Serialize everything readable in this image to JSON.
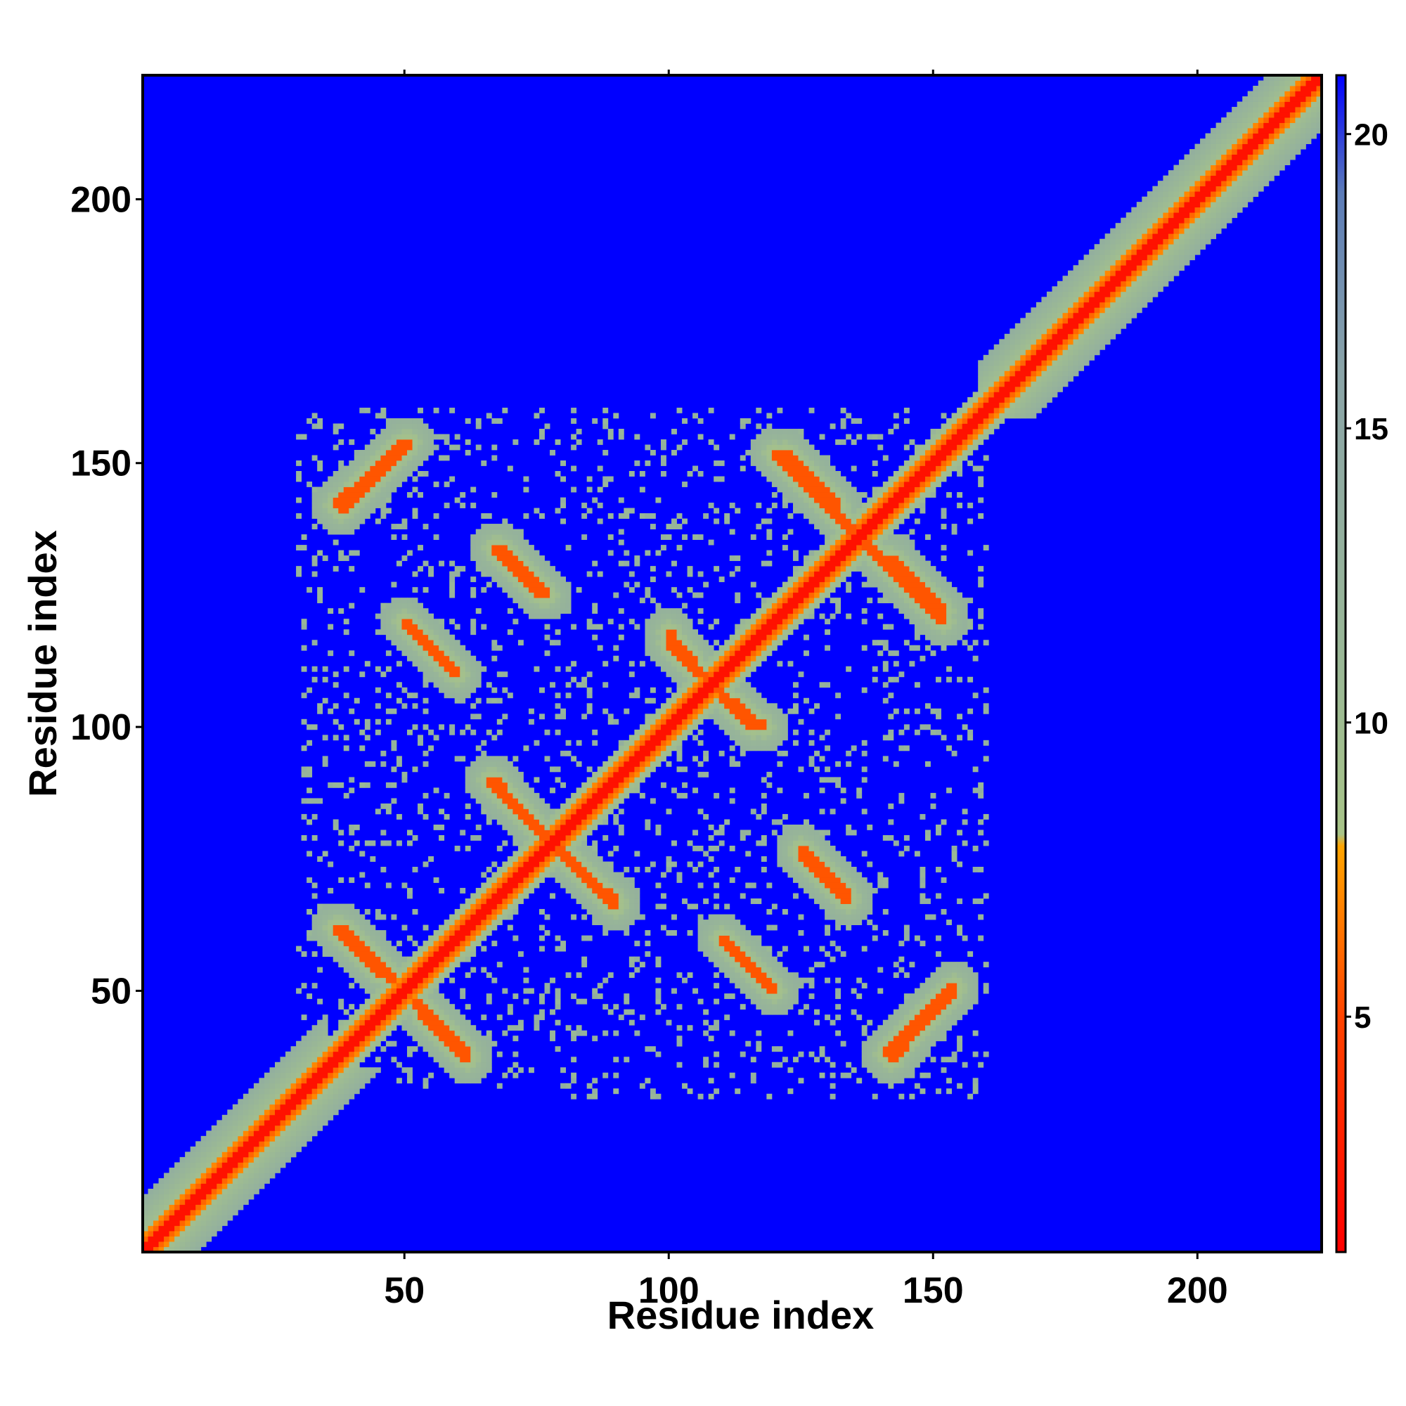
{
  "chart_data": {
    "type": "heatmap",
    "title": "",
    "xlabel": "Residue index",
    "ylabel": "Residue index",
    "xlim": [
      1,
      223
    ],
    "ylim": [
      1,
      223
    ],
    "xticks": [
      50,
      100,
      150,
      200
    ],
    "yticks": [
      50,
      100,
      150,
      200
    ],
    "colorbar": {
      "range": [
        1,
        21
      ],
      "ticks": [
        5,
        10,
        15,
        20
      ],
      "colors": [
        {
          "value": 1,
          "color": "#ff0000"
        },
        {
          "value": 5,
          "color": "#ff4400"
        },
        {
          "value": 7.9,
          "color": "#ffa500"
        },
        {
          "value": 8.1,
          "color": "#a8c488"
        },
        {
          "value": 11,
          "color": "#9ab896"
        },
        {
          "value": 16,
          "color": "#8aa4a8"
        },
        {
          "value": 19,
          "color": "#5c7cb8"
        },
        {
          "value": 21,
          "color": "#0000ff"
        }
      ]
    },
    "background_color": "#0000ff",
    "matrix_description": "Symmetric residue-residue distance map. Near-diagonal band of small values along the full length; lattice of perpendicular contact stripes for residues ~35-160.",
    "diagonal_band": {
      "residues": [
        1,
        223
      ]
    },
    "antidiagonal_stripes": [
      {
        "from": [
          52,
          48
        ],
        "to": [
          62,
          38
        ]
      },
      {
        "from": [
          37,
          62
        ],
        "to": [
          46,
          53
        ]
      },
      {
        "from": [
          76,
          80
        ],
        "to": [
          90,
          66
        ]
      },
      {
        "from": [
          67,
          90
        ],
        "to": [
          74,
          82
        ]
      },
      {
        "from": [
          108,
          108
        ],
        "to": [
          118,
          100
        ]
      },
      {
        "from": [
          100,
          116
        ],
        "to": [
          106,
          110
        ]
      },
      {
        "from": [
          136,
          136
        ],
        "to": [
          152,
          120
        ]
      },
      {
        "from": [
          122,
          152
        ],
        "to": [
          132,
          142
        ]
      },
      {
        "from": [
          50,
          120
        ],
        "to": [
          60,
          110
        ]
      },
      {
        "from": [
          67,
          134
        ],
        "to": [
          76,
          125
        ]
      },
      {
        "from": [
          37,
          142
        ],
        "to": [
          50,
          154
        ]
      },
      {
        "from": [
          110,
          60
        ],
        "to": [
          120,
          50
        ]
      },
      {
        "from": [
          125,
          77
        ],
        "to": [
          134,
          68
        ]
      },
      {
        "from": [
          141,
          38
        ],
        "to": [
          154,
          51
        ]
      }
    ]
  }
}
